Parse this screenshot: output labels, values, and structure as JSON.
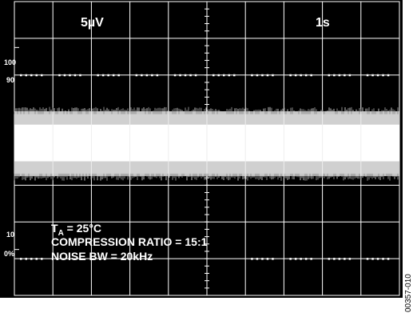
{
  "chart_data": {
    "type": "oscilloscope",
    "divisions": {
      "horizontal": 10,
      "vertical": 8
    },
    "settings": {
      "vertical_scale": "5µV",
      "time_scale": "1s"
    },
    "left_marks": [
      "100",
      "90",
      "10",
      "0%"
    ],
    "annotations": [
      {
        "main": "T",
        "sub": "A",
        "rest": " = 25°C"
      },
      {
        "main": "COMPRESSION RATIO = 15:1"
      },
      {
        "main": "NOISE BW = 20kHz"
      }
    ],
    "trace": {
      "description": "noise band",
      "top_band_divisions": [
        3.0,
        3.35
      ],
      "bottom_band_divisions": [
        4.35,
        4.75
      ],
      "band_color": "#d0d0d0"
    },
    "colors": {
      "background": "#000000",
      "grid": "#ffffff",
      "text": "#ffffff",
      "trace": "#ffffff"
    }
  },
  "figure_id": "00357-010"
}
